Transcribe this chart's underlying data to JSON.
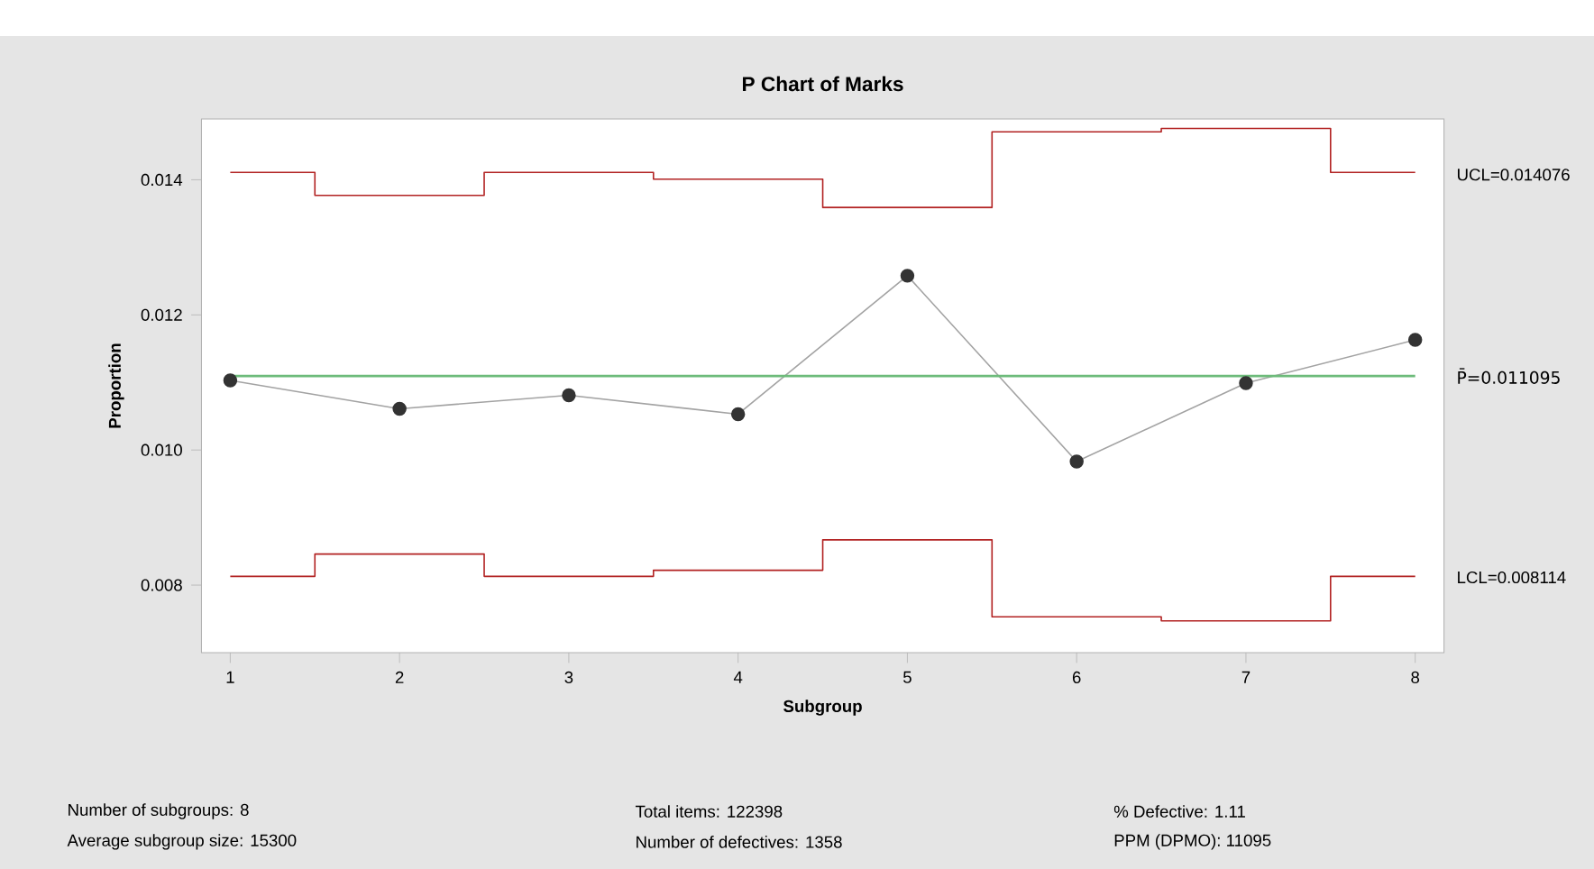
{
  "chart_data": {
    "type": "line",
    "title": "P Chart of Marks",
    "xlabel": "Subgroup",
    "ylabel": "Proportion",
    "x": [
      1,
      2,
      3,
      4,
      5,
      6,
      7,
      8
    ],
    "series": [
      {
        "type": "step",
        "color": "#b22222",
        "marker": "none",
        "values": [
          0.01411,
          0.01377,
          0.01411,
          0.01401,
          0.01359,
          0.01471,
          0.01476,
          0.01411
        ]
      },
      {
        "type": "step",
        "color": "#b22222",
        "marker": "none",
        "values": [
          0.00813,
          0.00846,
          0.00813,
          0.00822,
          0.00867,
          0.00753,
          0.00747,
          0.00813
        ]
      },
      {
        "color": "#333333",
        "marker": "circle",
        "values": [
          0.01103,
          0.01061,
          0.01081,
          0.01053,
          0.01258,
          0.00983,
          0.01099,
          0.01163
        ]
      }
    ],
    "xlim": [
      0.83,
      8.17
    ],
    "ylim": [
      0.007,
      0.0149
    ],
    "xticks": [
      1,
      2,
      3,
      4,
      5,
      6,
      7,
      8
    ],
    "yticks": [
      {
        "value": 0.008,
        "label": "0.008"
      },
      {
        "value": 0.01,
        "label": "0.010"
      },
      {
        "value": 0.012,
        "label": "0.012"
      },
      {
        "value": 0.014,
        "label": "0.014"
      }
    ],
    "ref_lines": [
      {
        "axis": "y",
        "value": 0.011095,
        "label": "P̄=0.011095",
        "color": "#6dbb7a"
      }
    ],
    "annotations": [
      {
        "text": "UCL=0.014076",
        "x": 8,
        "y": 0.014076
      },
      {
        "text": "LCL=0.008114",
        "x": 8,
        "y": 0.008114
      },
      "Number of subgroups: 8",
      "Average subgroup size: 15300",
      "Total items: 122398",
      "Number of defectives: 1358",
      "% Defective:  1.11",
      "PPM (DPMO): 11095"
    ]
  }
}
